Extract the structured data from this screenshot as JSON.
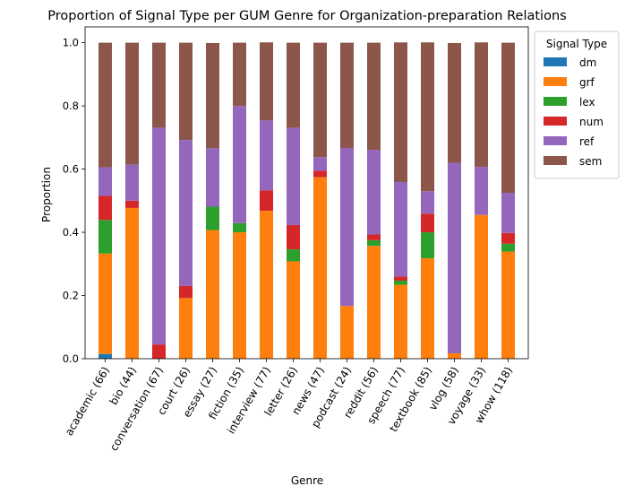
{
  "chart_data": {
    "type": "bar",
    "stacked": true,
    "title": "Proportion of Signal Type per GUM Genre for Organization-preparation Relations",
    "xlabel": "Genre",
    "ylabel": "Proportion",
    "ylim": [
      0,
      1.05
    ],
    "yticks": [
      "0.0",
      "0.2",
      "0.4",
      "0.6",
      "0.8",
      "1.0"
    ],
    "ytick_values": [
      0,
      0.2,
      0.4,
      0.6,
      0.8,
      1.0
    ],
    "grid": false,
    "legend": {
      "title": "Signal Type",
      "placement": "outside-top-right"
    },
    "categories": [
      "academic (66)",
      "bio (44)",
      "conversation (67)",
      "court (26)",
      "essay (27)",
      "fiction (35)",
      "interview (77)",
      "letter (26)",
      "news (47)",
      "podcast (24)",
      "reddit (56)",
      "speech (77)",
      "textbook (85)",
      "vlog (58)",
      "voyage (33)",
      "whow (118)"
    ],
    "series": [
      {
        "name": "dm",
        "color": "#1f77b4",
        "values": [
          0.015,
          0,
          0,
          0,
          0,
          0,
          0,
          0,
          0,
          0,
          0,
          0,
          0,
          0,
          0,
          0
        ]
      },
      {
        "name": "grf",
        "color": "#ff7f0e",
        "values": [
          0.318,
          0.477,
          0,
          0.192,
          0.407,
          0.4,
          0.468,
          0.308,
          0.574,
          0.167,
          0.357,
          0.234,
          0.318,
          0.017,
          0.455,
          0.339
        ]
      },
      {
        "name": "lex",
        "color": "#2ca02c",
        "values": [
          0.106,
          0,
          0,
          0,
          0.074,
          0.029,
          0,
          0.038,
          0,
          0,
          0.018,
          0.013,
          0.082,
          0,
          0,
          0.025
        ]
      },
      {
        "name": "num",
        "color": "#d62728",
        "values": [
          0.076,
          0.023,
          0.045,
          0.038,
          0,
          0,
          0.065,
          0.077,
          0.021,
          0,
          0.018,
          0.013,
          0.059,
          0,
          0,
          0.034
        ]
      },
      {
        "name": "ref",
        "color": "#9467bd",
        "values": [
          0.091,
          0.114,
          0.686,
          0.462,
          0.185,
          0.371,
          0.221,
          0.308,
          0.043,
          0.5,
          0.268,
          0.299,
          0.071,
          0.603,
          0.152,
          0.127
        ]
      },
      {
        "name": "sem",
        "color": "#8c564b",
        "values": [
          0.394,
          0.386,
          0.269,
          0.308,
          0.333,
          0.2,
          0.247,
          0.269,
          0.362,
          0.333,
          0.339,
          0.442,
          0.471,
          0.379,
          0.394,
          0.475
        ]
      }
    ]
  }
}
